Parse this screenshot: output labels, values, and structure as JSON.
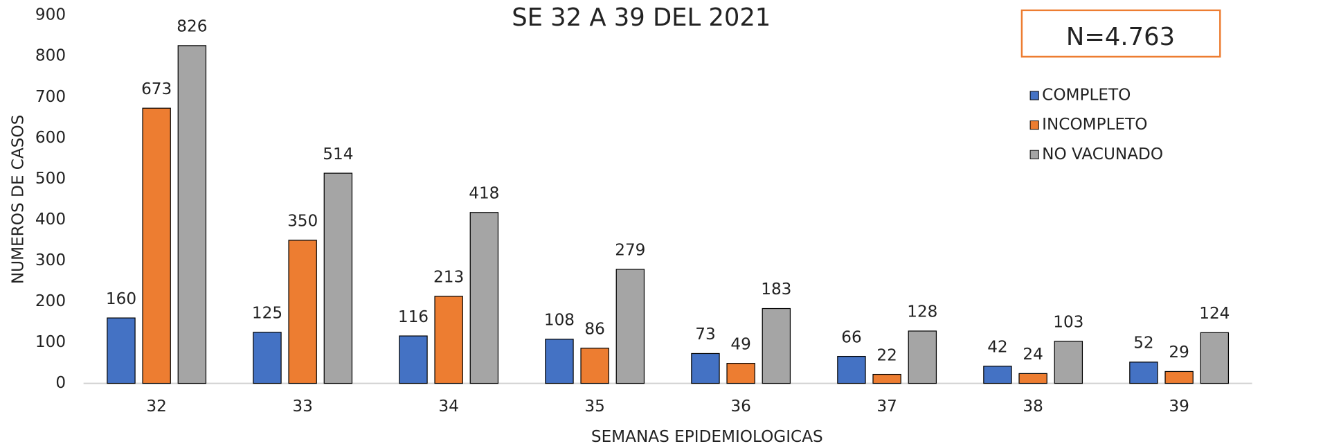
{
  "chart_data": {
    "type": "bar",
    "title": "SE 32 A 39 DEL 2021",
    "annotation": "N=4.763",
    "x_label": "SEMANAS EPIDEMIOLOGICAS",
    "y_label": "NUMEROS DE CASOS",
    "categories": [
      "32",
      "33",
      "34",
      "35",
      "36",
      "37",
      "38",
      "39"
    ],
    "series": [
      {
        "name": "COMPLETO",
        "color": "#4472c4",
        "values": [
          160,
          125,
          116,
          108,
          73,
          66,
          42,
          52
        ]
      },
      {
        "name": "INCOMPLETO",
        "color": "#ed7d31",
        "values": [
          673,
          350,
          213,
          86,
          49,
          22,
          24,
          29
        ]
      },
      {
        "name": "NO VACUNADO",
        "color": "#a5a5a5",
        "values": [
          826,
          514,
          418,
          279,
          183,
          128,
          103,
          124
        ]
      }
    ],
    "ylim": [
      0,
      900
    ],
    "yticks": [
      0,
      100,
      200,
      300,
      400,
      500,
      600,
      700,
      800,
      900
    ],
    "grid": false,
    "legend": "right"
  }
}
